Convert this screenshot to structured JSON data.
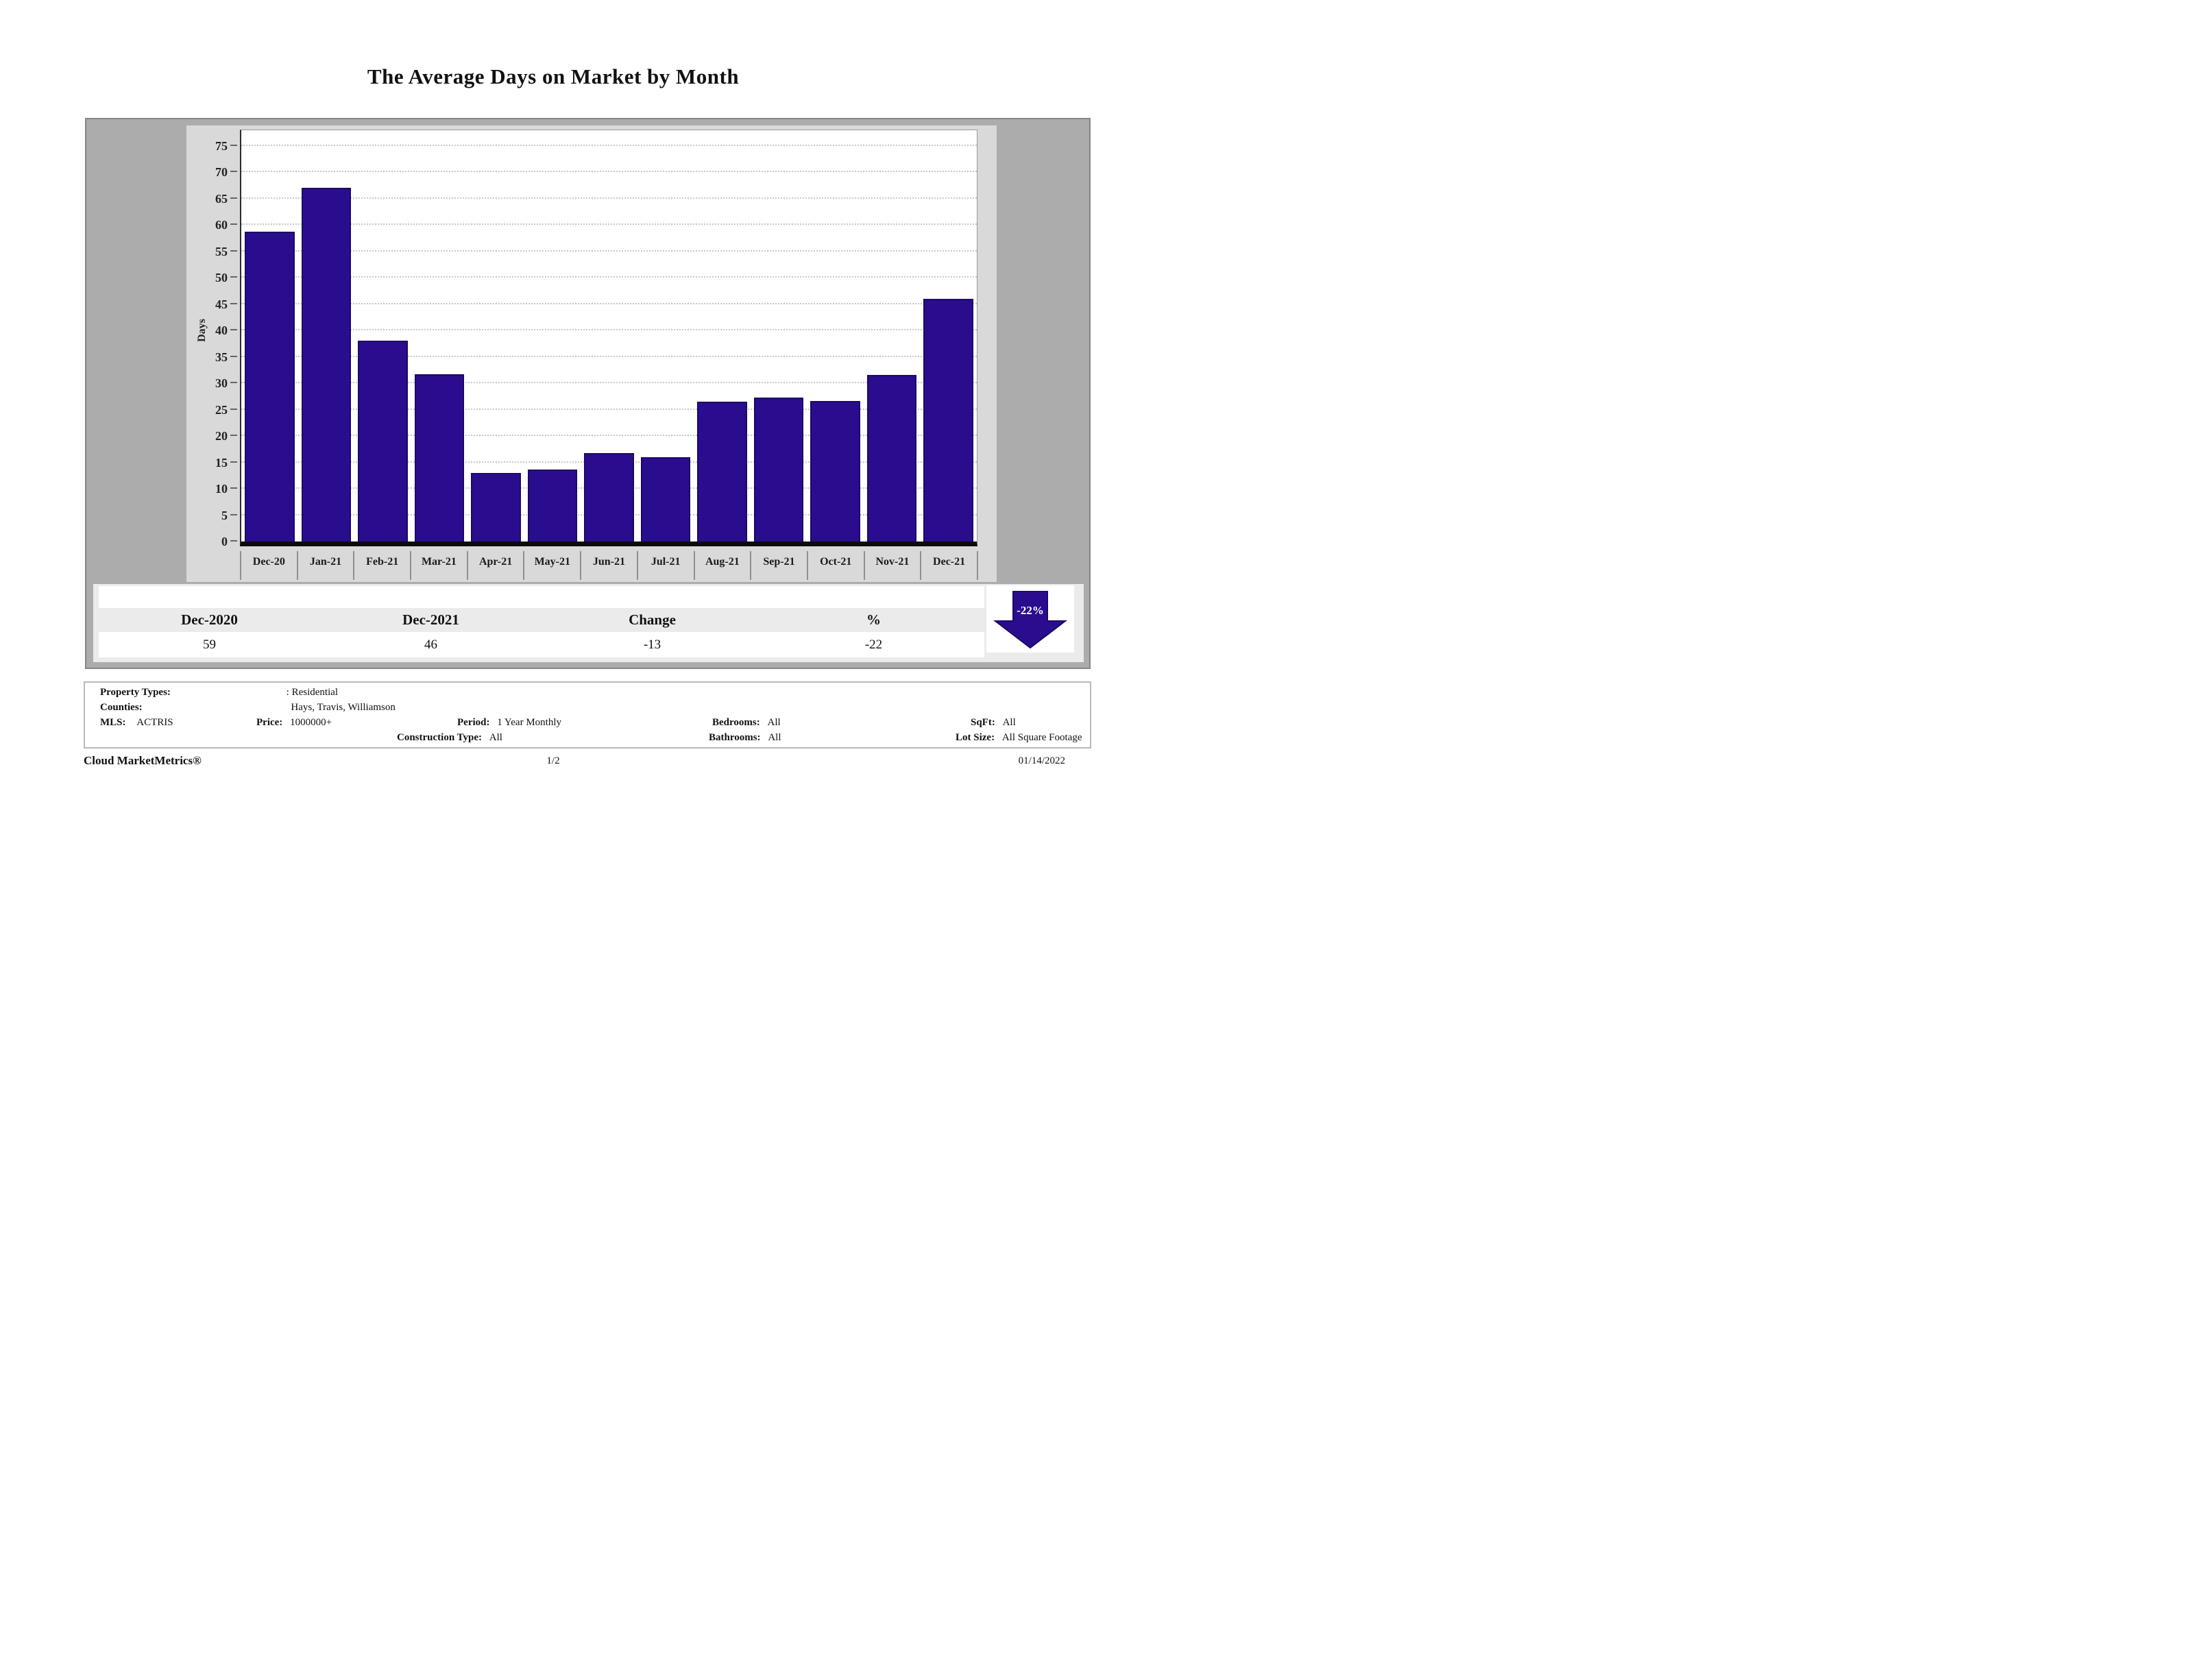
{
  "title": "The Average Days on Market by Month",
  "chart_data": {
    "type": "bar",
    "categories": [
      "Dec-20",
      "Jan-21",
      "Feb-21",
      "Mar-21",
      "Apr-21",
      "May-21",
      "Jun-21",
      "Jul-21",
      "Aug-21",
      "Sep-21",
      "Oct-21",
      "Nov-21",
      "Dec-21"
    ],
    "values": [
      58.7,
      67,
      38,
      31.7,
      13,
      13.6,
      16.7,
      16,
      26.5,
      27.3,
      26.6,
      31.5,
      46
    ],
    "title": "The Average Days on Market by Month",
    "xlabel": "",
    "ylabel": "Days",
    "ylim": [
      0,
      75
    ],
    "yticks": [
      75,
      70,
      65,
      60,
      55,
      50,
      45,
      40,
      35,
      30,
      25,
      20,
      15,
      10,
      5,
      0
    ],
    "ytick_step": 5,
    "grid": "horizontal dotted",
    "legend": "none",
    "bar_color": "#2a0d8e"
  },
  "summary_table": {
    "headers": [
      "Dec-2020",
      "Dec-2021",
      "Change",
      "%"
    ],
    "values": [
      "59",
      "46",
      "-13",
      "-22"
    ]
  },
  "trend_arrow": {
    "label": "-22%",
    "direction": "down",
    "color": "#2a0d8e"
  },
  "filters": {
    "property_types_label": "Property Types:",
    "property_types_value": ": Residential",
    "counties_label": "Counties:",
    "counties_value": "Hays, Travis, Williamson",
    "mls_label": "MLS:",
    "mls_value": "ACTRIS",
    "price_label": "Price:",
    "price_value": "1000000+",
    "period_label": "Period:",
    "period_value": "1 Year Monthly",
    "construction_label": "Construction Type:",
    "construction_value": "All",
    "bedrooms_label": "Bedrooms:",
    "bedrooms_value": "All",
    "bathrooms_label": "Bathrooms:",
    "bathrooms_value": "All",
    "sqft_label": "SqFt:",
    "sqft_value": "All",
    "lot_size_label": "Lot Size:",
    "lot_size_value": "All Square Footage"
  },
  "footer": {
    "brand": "Cloud MarketMetrics®",
    "page": "1/2",
    "date": "01/14/2022"
  }
}
